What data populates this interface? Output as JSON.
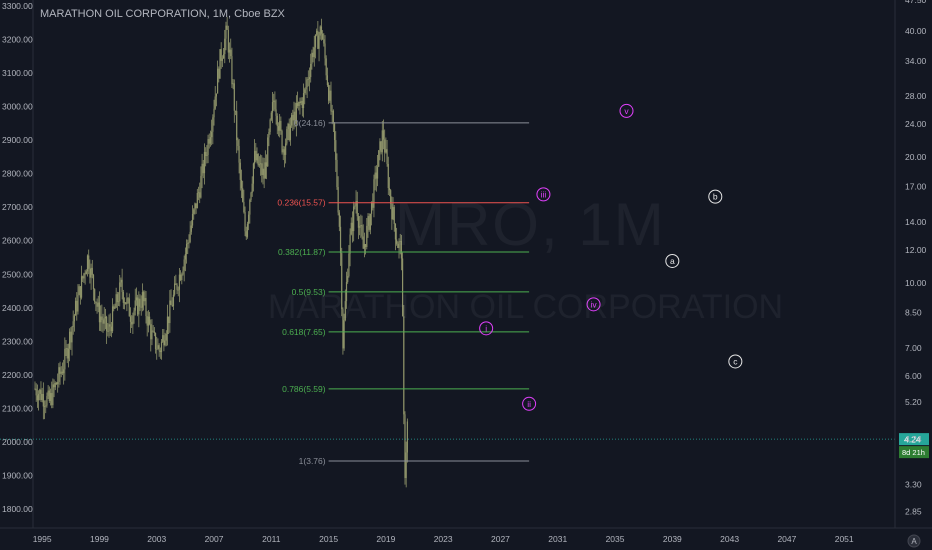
{
  "header": {
    "title": "MARATHON OIL CORPORATION, 1M, Cboe BZX"
  },
  "watermark": {
    "symbol": "MRO, 1M",
    "company": "MARATHON OIL CORPORATION"
  },
  "colors": {
    "background": "#131722",
    "candle": "#8f946a",
    "axis_text": "#b2b5be",
    "fib_red": "#ef5350",
    "fib_green": "#4caf50",
    "fib_gray": "#8a8e98",
    "wave_label": "#e040fb",
    "price_badge": "#26a69a",
    "countdown_badge": "#2e7d32"
  },
  "chart_data": {
    "type": "candlestick",
    "timeframe": "1M",
    "y_scale": "log",
    "left_axis": {
      "ticks": [
        1800,
        1900,
        2000,
        2100,
        2200,
        2300,
        2400,
        2500,
        2600,
        2700,
        2800,
        2900,
        3000,
        3100,
        3200,
        3300
      ],
      "labels": [
        "1800.00",
        "1900.00",
        "2000.00",
        "2100.00",
        "2200.00",
        "2300.00",
        "2400.00",
        "2500.00",
        "2600.00",
        "2700.00",
        "2800.00",
        "2900.00",
        "3000.00",
        "3100.00",
        "3200.00",
        "3300.00"
      ]
    },
    "right_axis": {
      "ticks": [
        2.85,
        3.3,
        4.24,
        5.2,
        6.0,
        7.0,
        8.5,
        10.0,
        12.0,
        14.0,
        17.0,
        20.0,
        24.0,
        28.0,
        34.0,
        40.0,
        47.5
      ],
      "labels": [
        "2.85",
        "3.30",
        "4.24",
        "5.20",
        "6.00",
        "7.00",
        "8.50",
        "10.00",
        "12.00",
        "14.00",
        "17.00",
        "20.00",
        "24.00",
        "28.00",
        "34.00",
        "40.00",
        "47.50"
      ],
      "range": [
        2.6,
        47.5
      ]
    },
    "x_axis": {
      "labels": [
        "1995",
        "1999",
        "2003",
        "2007",
        "2011",
        "2015",
        "2019",
        "2023",
        "2027",
        "2031",
        "2035",
        "2039",
        "2043",
        "2047",
        "2051"
      ],
      "range": [
        1994.5,
        2053.5
      ]
    },
    "price_series_points": [
      [
        1994.5,
        5.6
      ],
      [
        1995.5,
        5.2
      ],
      [
        1996.5,
        6.4
      ],
      [
        1997.5,
        9.2
      ],
      [
        1998.2,
        11.6
      ],
      [
        1998.9,
        8.6
      ],
      [
        1999.6,
        7.6
      ],
      [
        2000.5,
        9.8
      ],
      [
        2001.2,
        8.4
      ],
      [
        2002.0,
        9.2
      ],
      [
        2002.7,
        7.4
      ],
      [
        2003.2,
        6.9
      ],
      [
        2004.0,
        8.8
      ],
      [
        2005.0,
        11.8
      ],
      [
        2006.0,
        17.0
      ],
      [
        2006.8,
        24.0
      ],
      [
        2007.4,
        34.0
      ],
      [
        2007.9,
        40.0
      ],
      [
        2008.3,
        30.0
      ],
      [
        2008.8,
        18.0
      ],
      [
        2009.2,
        13.0
      ],
      [
        2009.8,
        20.0
      ],
      [
        2010.5,
        18.0
      ],
      [
        2011.2,
        28.0
      ],
      [
        2011.8,
        21.0
      ],
      [
        2012.6,
        25.0
      ],
      [
        2013.3,
        28.0
      ],
      [
        2013.9,
        36.0
      ],
      [
        2014.5,
        40.5
      ],
      [
        2014.9,
        31.0
      ],
      [
        2015.4,
        22.0
      ],
      [
        2015.8,
        13.0
      ],
      [
        2016.0,
        7.2
      ],
      [
        2016.4,
        12.0
      ],
      [
        2016.9,
        16.0
      ],
      [
        2017.4,
        12.0
      ],
      [
        2017.9,
        14.5
      ],
      [
        2018.4,
        19.0
      ],
      [
        2018.8,
        23.0
      ],
      [
        2019.3,
        16.0
      ],
      [
        2019.8,
        12.5
      ],
      [
        2020.1,
        12.0
      ],
      [
        2020.3,
        3.4
      ],
      [
        2020.5,
        4.6
      ]
    ],
    "fibonacci": [
      {
        "label": "0(24.16)",
        "value": 24.16,
        "color": "gray"
      },
      {
        "label": "0.236(15.57)",
        "value": 15.57,
        "color": "red"
      },
      {
        "label": "0.382(11.87)",
        "value": 11.87,
        "color": "green"
      },
      {
        "label": "0.5(9.53)",
        "value": 9.53,
        "color": "green"
      },
      {
        "label": "0.618(7.65)",
        "value": 7.65,
        "color": "green"
      },
      {
        "label": "0.786(5.59)",
        "value": 5.59,
        "color": "green"
      },
      {
        "label": "1(3.76)",
        "value": 3.76,
        "color": "gray"
      }
    ],
    "fib_range": {
      "from": 2015.0,
      "to": 2029.0
    },
    "wave_labels": [
      {
        "text": "i",
        "x": 2026.0,
        "y": 7.8,
        "color": "magenta"
      },
      {
        "text": "ii",
        "x": 2029.0,
        "y": 5.15,
        "color": "magenta"
      },
      {
        "text": "iii",
        "x": 2030.0,
        "y": 16.3,
        "color": "magenta"
      },
      {
        "text": "iv",
        "x": 2033.5,
        "y": 8.9,
        "color": "magenta"
      },
      {
        "text": "v",
        "x": 2035.8,
        "y": 25.8,
        "color": "magenta"
      },
      {
        "text": "a",
        "x": 2039.0,
        "y": 11.3,
        "color": "white"
      },
      {
        "text": "b",
        "x": 2042.0,
        "y": 16.1,
        "color": "white"
      },
      {
        "text": "c",
        "x": 2043.4,
        "y": 6.5,
        "color": "white"
      }
    ],
    "current_price": {
      "value": 4.24,
      "label": "4.24",
      "countdown": "8d 21h"
    }
  }
}
